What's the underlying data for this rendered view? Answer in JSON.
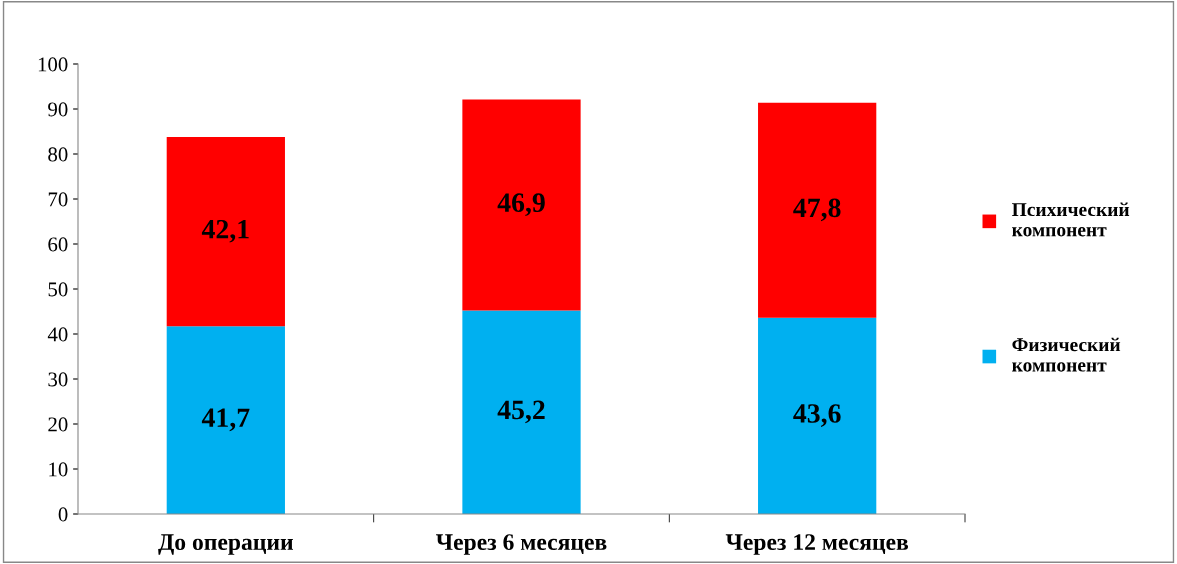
{
  "chart_data": {
    "type": "bar",
    "stacked": true,
    "categories": [
      "До операции",
      "Через 6 месяцев",
      "Через 12 месяцев"
    ],
    "series": [
      {
        "name": "Физический компонент",
        "color": "#00b0f0",
        "values": [
          41.7,
          45.2,
          43.6
        ],
        "value_labels": [
          "41,7",
          "45,2",
          "43,6"
        ]
      },
      {
        "name": "Психический компонент",
        "color": "#ff0000",
        "values": [
          42.1,
          46.9,
          47.8
        ],
        "value_labels": [
          "42,1",
          "46,9",
          "47,8"
        ]
      }
    ],
    "ylim": [
      0,
      100
    ],
    "yticks": [
      0,
      10,
      20,
      30,
      40,
      50,
      60,
      70,
      80,
      90,
      100
    ],
    "grid": false,
    "legend": "right"
  }
}
